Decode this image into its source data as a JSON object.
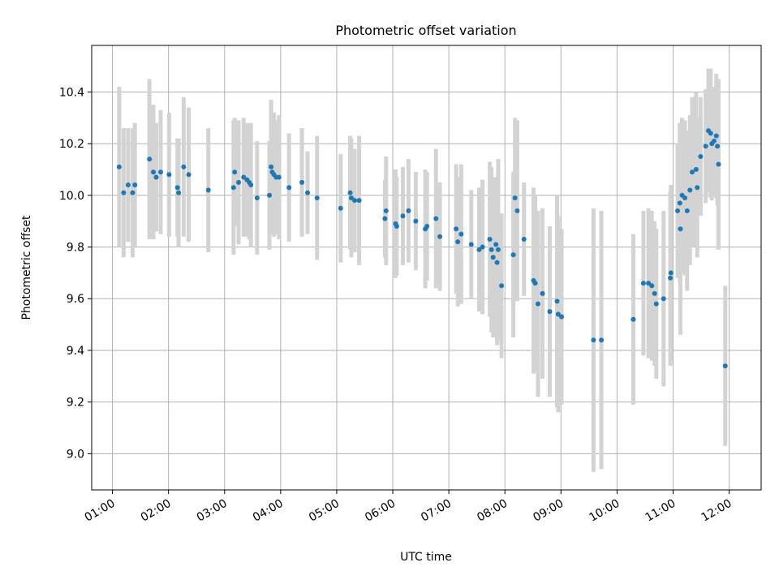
{
  "chart_data": {
    "type": "scatter",
    "title": "Photometric offset variation",
    "xlabel": "UTC time",
    "ylabel": "Photometric offset",
    "xlim": [
      0.63,
      12.57
    ],
    "ylim": [
      8.86,
      10.58
    ],
    "grid": true,
    "xticks": [
      1,
      2,
      3,
      4,
      5,
      6,
      7,
      8,
      9,
      10,
      11,
      12
    ],
    "xtick_labels": [
      "01:00",
      "02:00",
      "03:00",
      "04:00",
      "05:00",
      "06:00",
      "07:00",
      "08:00",
      "09:00",
      "10:00",
      "11:00",
      "12:00"
    ],
    "yticks": [
      9.0,
      9.2,
      9.4,
      9.6,
      9.8,
      10.0,
      10.2,
      10.4
    ],
    "ytick_labels": [
      "9.0",
      "9.2",
      "9.4",
      "9.6",
      "9.8",
      "10.0",
      "10.2",
      "10.4"
    ],
    "marker_color": "#1f77b4",
    "errorbar_color": "#d3d3d3",
    "series": [
      {
        "name": "offset",
        "x": [
          1.12,
          1.2,
          1.28,
          1.36,
          1.4,
          1.66,
          1.73,
          1.78,
          1.86,
          2.01,
          2.16,
          2.18,
          2.27,
          2.36,
          2.71,
          3.16,
          3.18,
          3.25,
          3.34,
          3.4,
          3.44,
          3.47,
          3.58,
          3.8,
          3.83,
          3.85,
          3.88,
          3.92,
          3.97,
          4.15,
          4.38,
          4.48,
          4.65,
          5.07,
          5.24,
          5.26,
          5.32,
          5.4,
          5.86,
          5.88,
          6.05,
          6.07,
          6.18,
          6.28,
          6.41,
          6.58,
          6.61,
          6.77,
          6.84,
          7.13,
          7.16,
          7.22,
          7.4,
          7.54,
          7.6,
          7.73,
          7.76,
          7.79,
          7.84,
          7.86,
          7.88,
          7.94,
          8.15,
          8.18,
          8.22,
          8.34,
          8.51,
          8.54,
          8.59,
          8.67,
          8.8,
          8.93,
          8.95,
          9.01,
          9.58,
          9.72,
          10.29,
          10.47,
          10.56,
          10.62,
          10.67,
          10.7,
          10.83,
          10.95,
          10.96,
          11.08,
          11.12,
          11.13,
          11.16,
          11.21,
          11.25,
          11.3,
          11.34,
          11.41,
          11.43,
          11.49,
          11.58,
          11.63,
          11.67,
          11.69,
          11.73,
          11.77,
          11.79,
          11.81,
          11.93
        ],
        "y": [
          10.11,
          10.01,
          10.04,
          10.01,
          10.04,
          10.14,
          10.09,
          10.07,
          10.09,
          10.08,
          10.03,
          10.01,
          10.11,
          10.08,
          10.02,
          10.03,
          10.09,
          10.05,
          10.07,
          10.06,
          10.05,
          10.04,
          9.99,
          10.0,
          10.11,
          10.09,
          10.08,
          10.07,
          10.07,
          10.03,
          10.05,
          10.01,
          9.99,
          9.95,
          10.01,
          9.99,
          9.98,
          9.98,
          9.91,
          9.94,
          9.89,
          9.88,
          9.92,
          9.94,
          9.9,
          9.87,
          9.88,
          9.91,
          9.84,
          9.87,
          9.82,
          9.85,
          9.81,
          9.79,
          9.8,
          9.83,
          9.79,
          9.76,
          9.81,
          9.74,
          9.79,
          9.65,
          9.77,
          9.99,
          9.94,
          9.83,
          9.67,
          9.66,
          9.58,
          9.62,
          9.55,
          9.59,
          9.54,
          9.53,
          9.44,
          9.44,
          9.52,
          9.66,
          9.66,
          9.65,
          9.62,
          9.58,
          9.6,
          9.68,
          9.7,
          9.94,
          9.97,
          9.87,
          10.0,
          9.99,
          9.94,
          10.02,
          10.09,
          10.1,
          10.03,
          10.15,
          10.19,
          10.25,
          10.24,
          10.2,
          10.21,
          10.23,
          10.19,
          10.12,
          9.34
        ],
        "err": [
          0.31,
          0.25,
          0.22,
          0.25,
          0.24,
          0.31,
          0.26,
          0.21,
          0.24,
          0.24,
          0.19,
          0.21,
          0.27,
          0.26,
          0.24,
          0.26,
          0.21,
          0.24,
          0.23,
          0.22,
          0.22,
          0.24,
          0.22,
          0.21,
          0.26,
          0.2,
          0.24,
          0.22,
          0.24,
          0.21,
          0.21,
          0.16,
          0.24,
          0.21,
          0.22,
          0.23,
          0.2,
          0.25,
          0.15,
          0.21,
          0.21,
          0.19,
          0.19,
          0.2,
          0.19,
          0.23,
          0.21,
          0.27,
          0.21,
          0.25,
          0.25,
          0.27,
          0.21,
          0.24,
          0.26,
          0.3,
          0.32,
          0.31,
          0.26,
          0.32,
          0.35,
          0.28,
          0.32,
          0.31,
          0.35,
          0.22,
          0.36,
          0.34,
          0.36,
          0.33,
          0.33,
          0.41,
          0.38,
          0.34,
          0.51,
          0.5,
          0.33,
          0.28,
          0.29,
          0.29,
          0.28,
          0.29,
          0.34,
          0.34,
          0.34,
          0.26,
          0.31,
          0.41,
          0.3,
          0.3,
          0.31,
          0.29,
          0.29,
          0.3,
          0.27,
          0.23,
          0.22,
          0.24,
          0.25,
          0.22,
          0.21,
          0.24,
          0.23,
          0.33,
          0.31
        ]
      }
    ]
  }
}
